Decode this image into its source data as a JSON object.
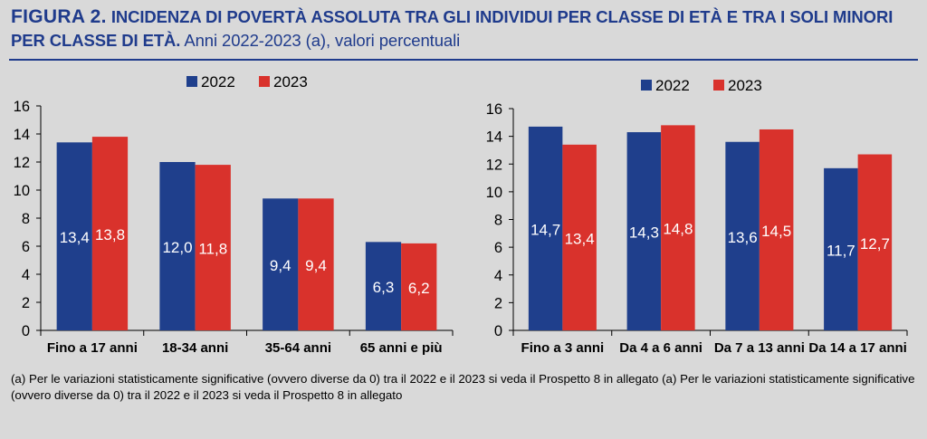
{
  "header": {
    "figure_label": "FIGURA 2.",
    "title": "INCIDENZA DI POVERTÀ ASSOLUTA TRA GLI INDIVIDUI PER CLASSE DI ETÀ E TRA I SOLI MINORI PER CLASSE DI ETÀ.",
    "subtitle": "Anni 2022-2023 (a), valori percentuali"
  },
  "colors": {
    "series_2022": "#1f3f8c",
    "series_2023": "#d9322c",
    "title": "#1f3b8c"
  },
  "chart_data": [
    {
      "type": "bar",
      "categories": [
        "Fino a 17 anni",
        "18-34 anni",
        "35-64 anni",
        "65 anni e più"
      ],
      "series": [
        {
          "name": "2022",
          "values": [
            13.4,
            12.0,
            9.4,
            6.3
          ],
          "labels": [
            "13,4",
            "12,0",
            "9,4",
            "6,3"
          ]
        },
        {
          "name": "2023",
          "values": [
            13.8,
            11.8,
            9.4,
            6.2
          ],
          "labels": [
            "13,8",
            "11,8",
            "9,4",
            "6,2"
          ]
        }
      ],
      "ylim": [
        0,
        16
      ],
      "yticks": [
        0,
        2,
        4,
        6,
        8,
        10,
        12,
        14,
        16
      ],
      "legend": "top-center",
      "grid": false
    },
    {
      "type": "bar",
      "categories": [
        "Fino a 3 anni",
        "Da 4 a 6 anni",
        "Da 7 a 13 anni",
        "Da 14 a 17 anni"
      ],
      "series": [
        {
          "name": "2022",
          "values": [
            14.7,
            14.3,
            13.6,
            11.7
          ],
          "labels": [
            "14,7",
            "14,3",
            "13,6",
            "11,7"
          ]
        },
        {
          "name": "2023",
          "values": [
            13.4,
            14.8,
            14.5,
            12.7
          ],
          "labels": [
            "13,4",
            "14,8",
            "14,5",
            "12,7"
          ]
        }
      ],
      "ylim": [
        0,
        16
      ],
      "yticks": [
        0,
        2,
        4,
        6,
        8,
        10,
        12,
        14,
        16
      ],
      "legend": "top-center",
      "grid": false
    }
  ],
  "footnote": "(a) Per le variazioni statisticamente significative (ovvero diverse da 0) tra il 2022 e il 2023 si veda il Prospetto 8 in allegato (a) Per le variazioni statisticamente significative (ovvero diverse da 0) tra il 2022 e il 2023 si veda il Prospetto 8 in allegato"
}
